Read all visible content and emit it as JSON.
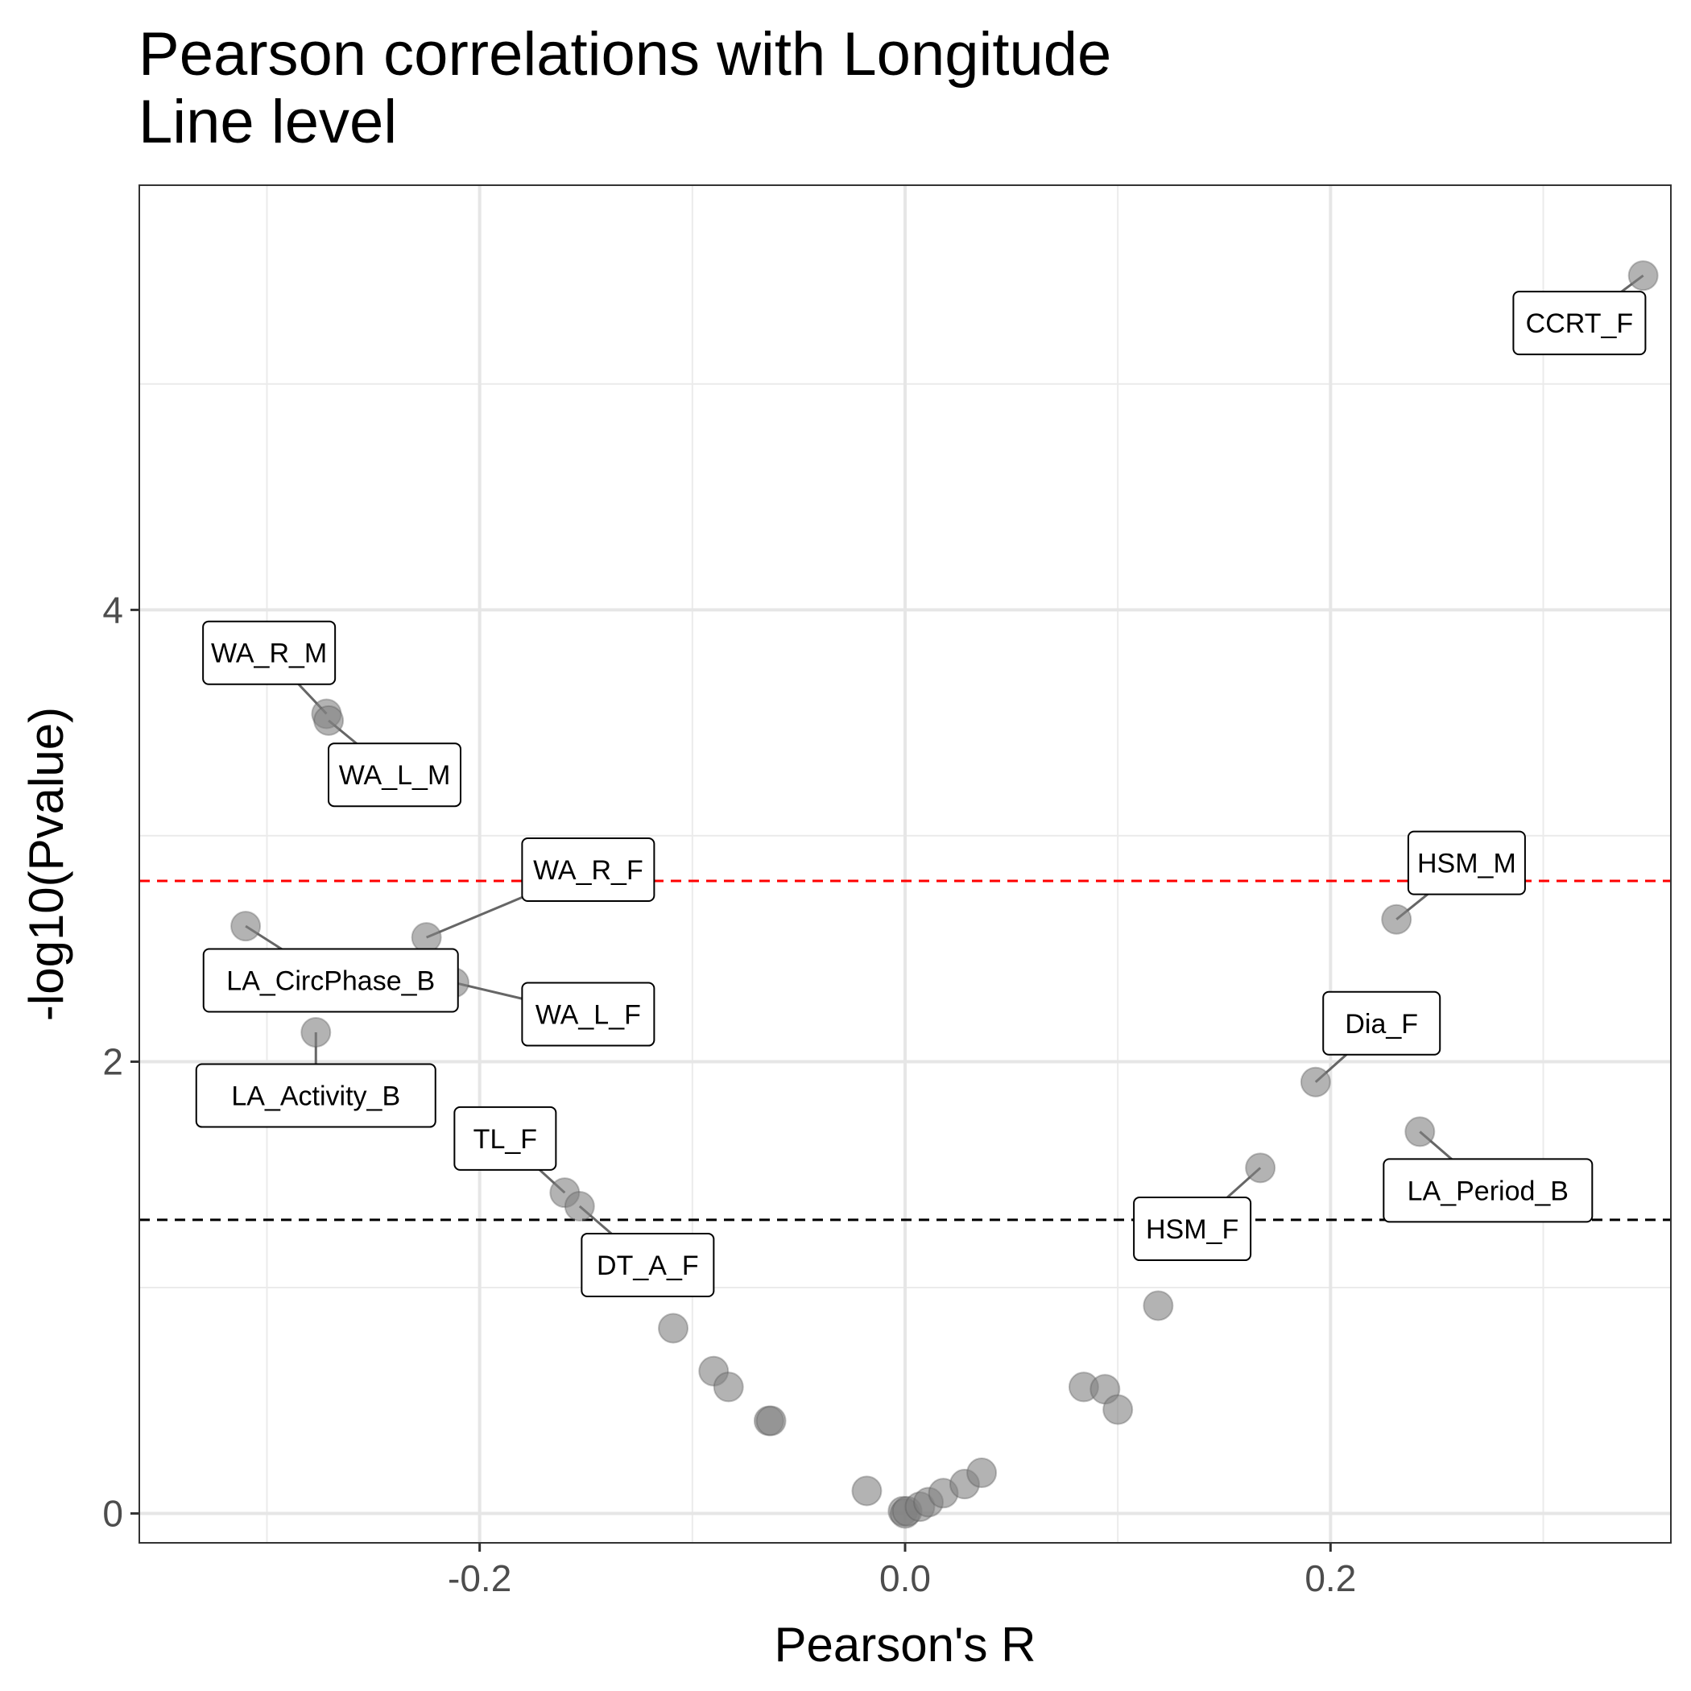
{
  "chart_data": {
    "type": "scatter",
    "title": "Pearson correlations with Longitude",
    "subtitle": "Line level",
    "xlabel": "Pearson's R",
    "ylabel": "-log10(Pvalue)",
    "xlim": [
      -0.36,
      0.36
    ],
    "ylim": [
      -0.13,
      5.88
    ],
    "x_ticks": [
      -0.2,
      0.0,
      0.2
    ],
    "x_tick_labels": [
      "-0.2",
      "0.0",
      "0.2"
    ],
    "y_ticks": [
      0,
      2,
      4
    ],
    "y_tick_labels": [
      "0",
      "2",
      "4"
    ],
    "grid": true,
    "point_color": "#808080",
    "thresholds": [
      {
        "y": 2.8,
        "color": "#ff0000"
      },
      {
        "y": 1.3,
        "color": "#000000"
      }
    ],
    "points": [
      {
        "x": 0.347,
        "y": 5.48,
        "label": "CCRT_F"
      },
      {
        "x": -0.272,
        "y": 3.54,
        "label": "WA_R_M"
      },
      {
        "x": -0.271,
        "y": 3.51,
        "label": "WA_L_M"
      },
      {
        "x": 0.231,
        "y": 2.63,
        "label": "HSM_M"
      },
      {
        "x": -0.31,
        "y": 2.6,
        "label": "LA_CircPhase_B"
      },
      {
        "x": -0.225,
        "y": 2.55,
        "label": "WA_R_F"
      },
      {
        "x": -0.212,
        "y": 2.35,
        "label": "WA_L_F"
      },
      {
        "x": -0.277,
        "y": 2.13,
        "label": "LA_Activity_B"
      },
      {
        "x": 0.193,
        "y": 1.91,
        "label": "Dia_F"
      },
      {
        "x": 0.242,
        "y": 1.69,
        "label": "LA_Period_B"
      },
      {
        "x": 0.167,
        "y": 1.53,
        "label": "HSM_F"
      },
      {
        "x": -0.16,
        "y": 1.42,
        "label": "TL_F"
      },
      {
        "x": -0.153,
        "y": 1.36,
        "label": "DT_A_F"
      },
      {
        "x": 0.119,
        "y": 0.92
      },
      {
        "x": -0.109,
        "y": 0.82
      },
      {
        "x": -0.09,
        "y": 0.63
      },
      {
        "x": -0.083,
        "y": 0.56
      },
      {
        "x": -0.064,
        "y": 0.41
      },
      {
        "x": -0.063,
        "y": 0.41
      },
      {
        "x": 0.084,
        "y": 0.56
      },
      {
        "x": 0.094,
        "y": 0.55
      },
      {
        "x": 0.1,
        "y": 0.46
      },
      {
        "x": -0.018,
        "y": 0.1
      },
      {
        "x": -0.001,
        "y": 0.01
      },
      {
        "x": 0.0,
        "y": 0.0
      },
      {
        "x": 0.001,
        "y": 0.01
      },
      {
        "x": 0.007,
        "y": 0.03
      },
      {
        "x": 0.011,
        "y": 0.05
      },
      {
        "x": 0.018,
        "y": 0.09
      },
      {
        "x": 0.028,
        "y": 0.13
      },
      {
        "x": 0.036,
        "y": 0.18
      }
    ],
    "labels": [
      {
        "text": "CCRT_F",
        "lx": 0.317,
        "ly": 5.27
      },
      {
        "text": "WA_R_M",
        "lx": -0.299,
        "ly": 3.81
      },
      {
        "text": "WA_L_M",
        "lx": -0.24,
        "ly": 3.27
      },
      {
        "text": "WA_R_F",
        "lx": -0.149,
        "ly": 2.85
      },
      {
        "text": "LA_CircPhase_B",
        "lx": -0.27,
        "ly": 2.36
      },
      {
        "text": "WA_L_F",
        "lx": -0.149,
        "ly": 2.21
      },
      {
        "text": "LA_Activity_B",
        "lx": -0.277,
        "ly": 1.85
      },
      {
        "text": "TL_F",
        "lx": -0.188,
        "ly": 1.66
      },
      {
        "text": "DT_A_F",
        "lx": -0.121,
        "ly": 1.1
      },
      {
        "text": "HSM_M",
        "lx": 0.264,
        "ly": 2.88
      },
      {
        "text": "Dia_F",
        "lx": 0.224,
        "ly": 2.17
      },
      {
        "text": "LA_Period_B",
        "lx": 0.274,
        "ly": 1.43
      },
      {
        "text": "HSM_F",
        "lx": 0.135,
        "ly": 1.26
      }
    ]
  }
}
